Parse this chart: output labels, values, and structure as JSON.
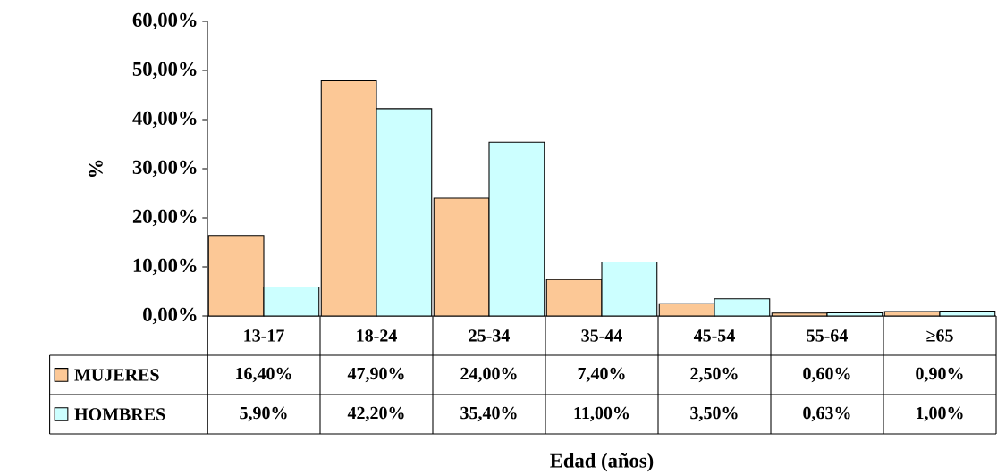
{
  "chart_data": {
    "type": "bar",
    "categories": [
      "13-17",
      "18-24",
      "25-34",
      "35-44",
      "45-54",
      "55-64",
      "≥65"
    ],
    "series": [
      {
        "name": "MUJERES",
        "color": "#fcc896",
        "values": [
          16.4,
          47.9,
          24.0,
          7.4,
          2.5,
          0.6,
          0.9
        ],
        "value_labels": [
          "16,40%",
          "47,90%",
          "24,00%",
          "7,40%",
          "2,50%",
          "0,60%",
          "0,90%"
        ]
      },
      {
        "name": "HOMBRES",
        "color": "#ccffff",
        "values": [
          5.9,
          42.2,
          35.4,
          11.0,
          3.5,
          0.63,
          1.0
        ],
        "value_labels": [
          "5,90%",
          "42,20%",
          "35,40%",
          "11,00%",
          "3,50%",
          "0,63%",
          "1,00%"
        ]
      }
    ],
    "ylim": [
      0,
      60
    ],
    "yticks": [
      {
        "value": 0,
        "label": "0,00%"
      },
      {
        "value": 10,
        "label": "10,00%"
      },
      {
        "value": 20,
        "label": "20,00%"
      },
      {
        "value": 30,
        "label": "30,00%"
      },
      {
        "value": 40,
        "label": "40,00%"
      },
      {
        "value": 50,
        "label": "50,00%"
      },
      {
        "value": 60,
        "label": "60,00%"
      }
    ],
    "annotations": [
      "Edad (años)"
    ],
    "ylabel": "%",
    "legend": "bottom left"
  }
}
